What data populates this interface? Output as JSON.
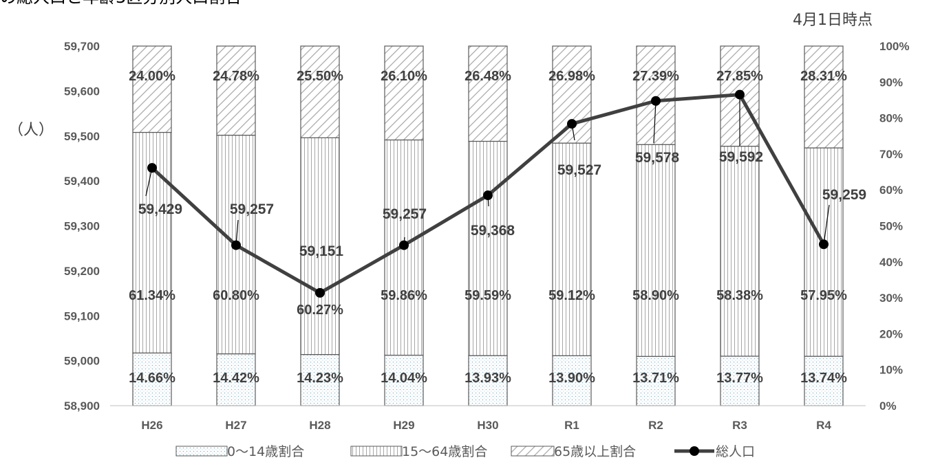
{
  "header": {
    "title": "の総人口と年齢3区分別人口割合",
    "note": "4月1日時点"
  },
  "left_axis_unit": "（人）",
  "legend": [
    {
      "key": "young",
      "label": "0～14歳割合"
    },
    {
      "key": "working",
      "label": "15～64歳割合"
    },
    {
      "key": "elderly",
      "label": "65歳以上割合"
    },
    {
      "key": "population",
      "label": "総人口"
    }
  ],
  "chart_data": {
    "type": "bar",
    "stacked": true,
    "categories": [
      "H26",
      "H27",
      "H28",
      "H29",
      "H30",
      "R1",
      "R2",
      "R3",
      "R4"
    ],
    "series": [
      {
        "key": "young",
        "name": "0～14歳割合",
        "axis": "right",
        "unit": "%",
        "values": [
          14.66,
          14.42,
          14.23,
          14.04,
          13.93,
          13.9,
          13.71,
          13.77,
          13.74
        ]
      },
      {
        "key": "working",
        "name": "15～64歳割合",
        "axis": "right",
        "unit": "%",
        "values": [
          61.34,
          60.8,
          60.27,
          59.86,
          59.59,
          59.12,
          58.9,
          58.38,
          57.95
        ]
      },
      {
        "key": "elderly",
        "name": "65歳以上割合",
        "axis": "right",
        "unit": "%",
        "values": [
          24.0,
          24.78,
          25.5,
          26.1,
          26.48,
          26.98,
          27.39,
          27.85,
          28.31
        ]
      },
      {
        "key": "population",
        "name": "総人口",
        "type": "line",
        "axis": "left",
        "values": [
          59429,
          59257,
          59151,
          59257,
          59368,
          59527,
          59578,
          59592,
          59259
        ]
      }
    ],
    "left_axis": {
      "min": 58900,
      "max": 59700,
      "step": 100,
      "ticks": [
        "58,900",
        "59,000",
        "59,100",
        "59,200",
        "59,300",
        "59,400",
        "59,500",
        "59,600",
        "59,700"
      ]
    },
    "right_axis": {
      "min": 0,
      "max": 100,
      "step": 10,
      "ticks": [
        "0%",
        "10%",
        "20%",
        "30%",
        "40%",
        "50%",
        "60%",
        "70%",
        "80%",
        "90%",
        "100%"
      ]
    },
    "segment_labels": {
      "young": [
        "14.66%",
        "14.42%",
        "14.23%",
        "14.04%",
        "13.93%",
        "13.90%",
        "13.71%",
        "13.77%",
        "13.74%"
      ],
      "working": [
        "61.34%",
        "60.80%",
        "60.27%",
        "59.86%",
        "59.59%",
        "59.12%",
        "58.90%",
        "58.38%",
        "57.95%"
      ],
      "elderly": [
        "24.00%",
        "24.78%",
        "25.50%",
        "26.10%",
        "26.48%",
        "26.98%",
        "27.39%",
        "27.85%",
        "28.31%"
      ]
    },
    "population_labels": [
      "59,429",
      "59,257",
      "59,151",
      "59,257",
      "59,368",
      "59,527",
      "59,578",
      "59,592",
      "59,259"
    ],
    "grid": false,
    "legend_position": "bottom",
    "colors": {
      "line": "#404040",
      "bar_border": "#595959",
      "young_dots": "#8fb8c8",
      "hatch": "#a6a6a6"
    }
  }
}
